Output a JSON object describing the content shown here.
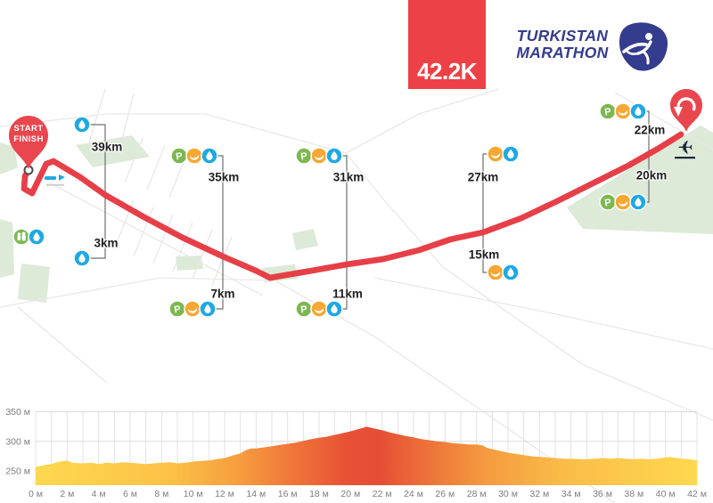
{
  "header": {
    "distance_badge": "42.2K",
    "logo": {
      "line1": "TURKISTAN",
      "line2": "MARATHON"
    }
  },
  "map": {
    "start_marker": {
      "line1": "START",
      "line2": "FINISH"
    },
    "turn_marker_icon": "u-turn-arrow",
    "airport_icon": "airplane",
    "icon_glyphs": {
      "parking": "P"
    },
    "start_facilities": {
      "icons": [
        "people",
        "water"
      ]
    },
    "stations": [
      {
        "label": "39km",
        "icons": [
          "water"
        ]
      },
      {
        "label": "3km",
        "icons": [
          "water"
        ]
      },
      {
        "label": "35km",
        "icons": [
          "parking",
          "banana",
          "water"
        ]
      },
      {
        "label": "7km",
        "icons": [
          "parking",
          "banana",
          "water"
        ]
      },
      {
        "label": "31km",
        "icons": [
          "parking",
          "banana",
          "water"
        ]
      },
      {
        "label": "11km",
        "icons": [
          "parking",
          "banana",
          "water"
        ]
      },
      {
        "label": "27km",
        "icons": [
          "banana",
          "water"
        ]
      },
      {
        "label": "15km",
        "icons": [
          "banana",
          "water"
        ]
      },
      {
        "label": "22km",
        "icons": [
          "parking",
          "banana",
          "water"
        ]
      },
      {
        "label": "20km",
        "icons": [
          "parking",
          "banana",
          "water"
        ]
      }
    ],
    "colors": {
      "route_red": "#e73f48",
      "marker_red": "#e9464e",
      "arrow_yellow": "#fcb040",
      "park_green": "#dcead7",
      "road_gray": "#e8e8e6",
      "leader_line": "#6f6f6f",
      "icon_parking": "#7cb84f",
      "icon_banana": "#f6a832",
      "icon_water": "#1fa9e4",
      "icon_people": "#7cb84f",
      "logo_navy": "#343c8e",
      "badge_red": "#ee4147",
      "airport_dark": "#16263c"
    }
  },
  "chart_data": {
    "type": "area",
    "title": "",
    "xlabel": "",
    "ylabel": "",
    "x_range": [
      0,
      42
    ],
    "y_gridlines": [
      250,
      300,
      350
    ],
    "grid": true,
    "x_tick_step_km": 2,
    "x_tick_labels": [
      "0 м",
      "2 м",
      "4 м",
      "6 м",
      "8 м",
      "10 м",
      "12 м",
      "14 м",
      "16 м",
      "18 м",
      "20 м",
      "22 м",
      "24 м",
      "26 м",
      "28 м",
      "30 м",
      "32 м",
      "34 м",
      "36 м",
      "38 м",
      "40 м",
      "42 м"
    ],
    "y_tick_labels": [
      "250 м",
      "300 м",
      "350 м"
    ],
    "points": [
      [
        0,
        257
      ],
      [
        0.5,
        260
      ],
      [
        1,
        262
      ],
      [
        1.5,
        266
      ],
      [
        2,
        268
      ],
      [
        2.3,
        264
      ],
      [
        3,
        263
      ],
      [
        3.5,
        264
      ],
      [
        4,
        262
      ],
      [
        4.5,
        264
      ],
      [
        5,
        263
      ],
      [
        5.5,
        265
      ],
      [
        6,
        264
      ],
      [
        6.5,
        263
      ],
      [
        7,
        262
      ],
      [
        7.5,
        263
      ],
      [
        8,
        264
      ],
      [
        8.5,
        265
      ],
      [
        9,
        263
      ],
      [
        9.5,
        264
      ],
      [
        10,
        266
      ],
      [
        10.5,
        267
      ],
      [
        11,
        268
      ],
      [
        11.5,
        270
      ],
      [
        12,
        272
      ],
      [
        12.5,
        276
      ],
      [
        13,
        280
      ],
      [
        13.4,
        286
      ],
      [
        13.7,
        288
      ],
      [
        14,
        288
      ],
      [
        14.5,
        290
      ],
      [
        15,
        292
      ],
      [
        15.5,
        294
      ],
      [
        16,
        296
      ],
      [
        16.5,
        298
      ],
      [
        17,
        301
      ],
      [
        17.5,
        304
      ],
      [
        18,
        306
      ],
      [
        18.5,
        308
      ],
      [
        19,
        311
      ],
      [
        19.5,
        314
      ],
      [
        20,
        317
      ],
      [
        20.4,
        320
      ],
      [
        20.8,
        323
      ],
      [
        21,
        325
      ],
      [
        21.3,
        323
      ],
      [
        21.6,
        321
      ],
      [
        22,
        319
      ],
      [
        22.5,
        315
      ],
      [
        23,
        312
      ],
      [
        23.5,
        309
      ],
      [
        24,
        307
      ],
      [
        24.5,
        304
      ],
      [
        25,
        302
      ],
      [
        25.5,
        300
      ],
      [
        26,
        299
      ],
      [
        26.5,
        297
      ],
      [
        27,
        296
      ],
      [
        27.5,
        295
      ],
      [
        28,
        295
      ],
      [
        28.4,
        293
      ],
      [
        28.7,
        289
      ],
      [
        29,
        287
      ],
      [
        29.5,
        284
      ],
      [
        30,
        281
      ],
      [
        30.5,
        279
      ],
      [
        31,
        277
      ],
      [
        31.5,
        275
      ],
      [
        32,
        274
      ],
      [
        32.5,
        273
      ],
      [
        33,
        272
      ],
      [
        33.5,
        271
      ],
      [
        34,
        271
      ],
      [
        34.5,
        270
      ],
      [
        35,
        270
      ],
      [
        35.5,
        271
      ],
      [
        36,
        272
      ],
      [
        36.5,
        271
      ],
      [
        37,
        272
      ],
      [
        37.5,
        271
      ],
      [
        38,
        270
      ],
      [
        38.5,
        271
      ],
      [
        39,
        270
      ],
      [
        39.5,
        271
      ],
      [
        40,
        273
      ],
      [
        40.3,
        274
      ],
      [
        40.7,
        272
      ],
      [
        41,
        271
      ],
      [
        41.5,
        270
      ],
      [
        42,
        268
      ]
    ],
    "gradient_stops": [
      [
        0,
        "#ffd84f"
      ],
      [
        20,
        "#fcc247"
      ],
      [
        30,
        "#f7a03f"
      ],
      [
        40,
        "#ef7038"
      ],
      [
        47,
        "#e85136"
      ],
      [
        52,
        "#e64d35"
      ],
      [
        58,
        "#ec6c38"
      ],
      [
        68,
        "#f49a40"
      ],
      [
        80,
        "#fabd48"
      ],
      [
        100,
        "#ffd84f"
      ]
    ]
  }
}
